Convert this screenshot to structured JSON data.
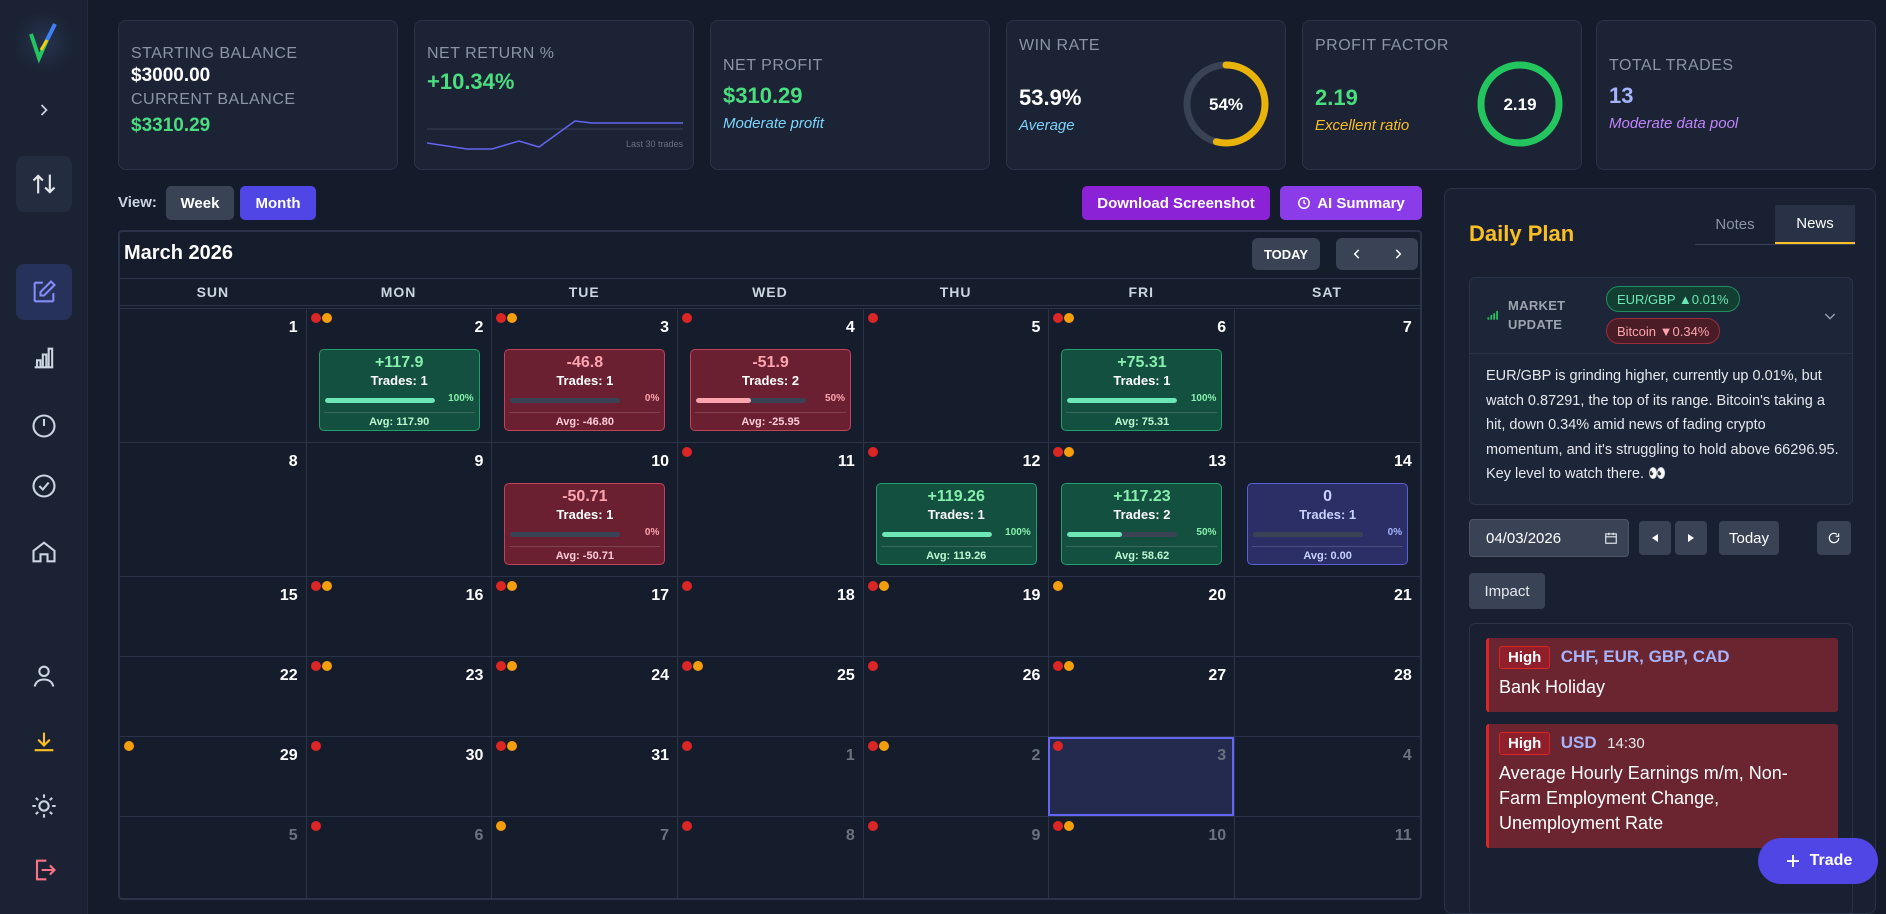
{
  "stats": {
    "balance": {
      "starting_label": "Starting Balance",
      "starting_value": "$3000.00",
      "current_label": "Current Balance",
      "current_value": "$3310.29"
    },
    "net_return": {
      "label": "Net Return %",
      "value": "+10.34%",
      "caption": "Last 30 trades"
    },
    "net_profit": {
      "label": "Net Profit",
      "value": "$310.29",
      "sub": "Moderate profit"
    },
    "win_rate": {
      "label": "Win Rate",
      "value": "53.9%",
      "sub": "Average",
      "gauge_text": "54%",
      "gauge_fraction": 0.539
    },
    "profit_factor": {
      "label": "Profit Factor",
      "value": "2.19",
      "sub": "Excellent ratio",
      "gauge_text": "2.19",
      "gauge_fraction": 1.0
    },
    "total_trades": {
      "label": "Total Trades",
      "value": "13",
      "sub": "Moderate data pool"
    }
  },
  "controls": {
    "view_label": "View:",
    "week": "Week",
    "month": "Month",
    "download": "Download Screenshot",
    "ai_summary": "AI Summary"
  },
  "calendar": {
    "title": "March 2026",
    "today": "TODAY",
    "weekdays": [
      "SUN",
      "MON",
      "TUE",
      "WED",
      "THU",
      "FRI",
      "SAT"
    ],
    "weeks": [
      [
        {
          "n": "1"
        },
        {
          "n": "2",
          "dots": "ro",
          "trade": {
            "kind": "win",
            "pnl": "+117.9",
            "trades": "Trades: 1",
            "pct": "100%",
            "fill": 1.0,
            "avg": "Avg: 117.90"
          }
        },
        {
          "n": "3",
          "dots": "ro",
          "trade": {
            "kind": "loss",
            "pnl": "-46.8",
            "trades": "Trades: 1",
            "pct": "0%",
            "fill": 0,
            "avg": "Avg: -46.80"
          }
        },
        {
          "n": "4",
          "dots": "r",
          "trade": {
            "kind": "loss",
            "pnl": "-51.9",
            "trades": "Trades: 2",
            "pct": "50%",
            "fill": 0.5,
            "avg": "Avg: -25.95"
          }
        },
        {
          "n": "5",
          "dots": "r"
        },
        {
          "n": "6",
          "dots": "ro",
          "trade": {
            "kind": "win",
            "pnl": "+75.31",
            "trades": "Trades: 1",
            "pct": "100%",
            "fill": 1.0,
            "avg": "Avg: 75.31"
          }
        },
        {
          "n": "7"
        }
      ],
      [
        {
          "n": "8"
        },
        {
          "n": "9"
        },
        {
          "n": "10",
          "trade": {
            "kind": "loss",
            "pnl": "-50.71",
            "trades": "Trades: 1",
            "pct": "0%",
            "fill": 0,
            "avg": "Avg: -50.71"
          }
        },
        {
          "n": "11",
          "dots": "r"
        },
        {
          "n": "12",
          "dots": "r",
          "trade": {
            "kind": "win",
            "pnl": "+119.26",
            "trades": "Trades: 1",
            "pct": "100%",
            "fill": 1.0,
            "avg": "Avg: 119.26"
          }
        },
        {
          "n": "13",
          "dots": "ro",
          "trade": {
            "kind": "win",
            "pnl": "+117.23",
            "trades": "Trades: 2",
            "pct": "50%",
            "fill": 0.5,
            "avg": "Avg: 58.62"
          }
        },
        {
          "n": "14",
          "trade": {
            "kind": "flat",
            "pnl": "0",
            "trades": "Trades: 1",
            "pct": "0%",
            "fill": 0,
            "avg": "Avg: 0.00"
          }
        }
      ],
      [
        {
          "n": "15"
        },
        {
          "n": "16",
          "dots": "ro"
        },
        {
          "n": "17",
          "dots": "ro"
        },
        {
          "n": "18",
          "dots": "r"
        },
        {
          "n": "19",
          "dots": "ro"
        },
        {
          "n": "20",
          "dots": "o"
        },
        {
          "n": "21"
        }
      ],
      [
        {
          "n": "22"
        },
        {
          "n": "23",
          "dots": "ro"
        },
        {
          "n": "24",
          "dots": "ro"
        },
        {
          "n": "25",
          "dots": "ro"
        },
        {
          "n": "26",
          "dots": "r"
        },
        {
          "n": "27",
          "dots": "ro"
        },
        {
          "n": "28"
        }
      ],
      [
        {
          "n": "29",
          "dots": "o"
        },
        {
          "n": "30",
          "dots": "r"
        },
        {
          "n": "31",
          "dots": "ro"
        },
        {
          "n": "1",
          "muted": true,
          "dots": "r"
        },
        {
          "n": "2",
          "muted": true,
          "dots": "ro"
        },
        {
          "n": "3",
          "muted": true,
          "dots": "r",
          "selected": true
        },
        {
          "n": "4",
          "muted": true
        }
      ],
      [
        {
          "n": "5",
          "muted": true
        },
        {
          "n": "6",
          "muted": true,
          "dots": "r"
        },
        {
          "n": "7",
          "muted": true,
          "dots": "o"
        },
        {
          "n": "8",
          "muted": true,
          "dots": "r"
        },
        {
          "n": "9",
          "muted": true,
          "dots": "r"
        },
        {
          "n": "10",
          "muted": true,
          "dots": "ro"
        },
        {
          "n": "11",
          "muted": true
        }
      ]
    ]
  },
  "daily_plan": {
    "title": "Daily Plan",
    "tabs": [
      "Notes",
      "News"
    ],
    "market_update_label": "MARKET UPDATE",
    "pill_up": "EUR/GBP ▲0.01%",
    "pill_down": "Bitcoin ▼0.34%",
    "summary": "EUR/GBP is grinding higher, currently up 0.01%, but watch 0.87291, the top of its range. Bitcoin's taking a hit, down 0.34% amid news of fading crypto momentum, and it's struggling to hold above 66296.95. Key level to watch there. 👀",
    "date": "04/03/2026",
    "today": "Today",
    "impact": "Impact",
    "events": [
      {
        "impact": "High",
        "currency": "CHF, EUR, GBP, CAD",
        "time": "",
        "name": "Bank Holiday"
      },
      {
        "impact": "High",
        "currency": "USD",
        "time": "14:30",
        "name": "Average Hourly Earnings m/m, Non-Farm Employment Change, Unemployment Rate"
      }
    ]
  },
  "fab_label": "Trade",
  "colors": {
    "accent": "#4f46e5",
    "win": "#22a06b",
    "loss": "#c2425a",
    "gold": "#fbbf24"
  }
}
